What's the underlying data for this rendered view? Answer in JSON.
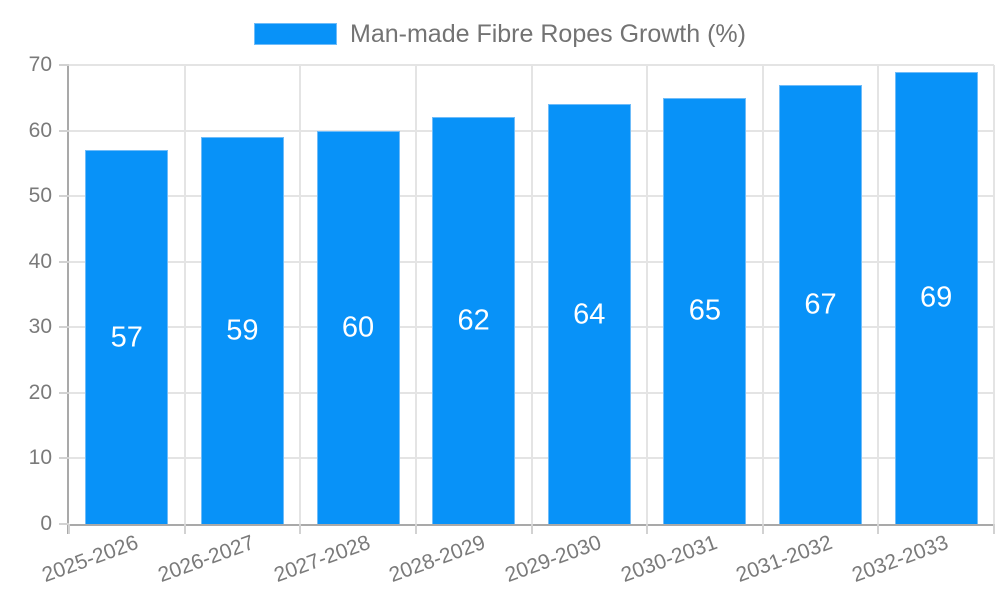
{
  "legend": {
    "label": "Man-made Fibre Ropes Growth (%)"
  },
  "chart_data": {
    "type": "bar",
    "title": "Man-made Fibre Ropes Growth (%)",
    "legend_position": "top",
    "categories": [
      "2025-2026",
      "2026-2027",
      "2027-2028",
      "2028-2029",
      "2029-2030",
      "2030-2031",
      "2031-2032",
      "2032-2033"
    ],
    "values": [
      57,
      59,
      60,
      62,
      64,
      65,
      67,
      69
    ],
    "series_name": "Man-made Fibre Ropes Growth (%)",
    "xlabel": "",
    "ylabel": "",
    "ylim": [
      0,
      70
    ],
    "yticks": [
      0,
      10,
      20,
      30,
      40,
      50,
      60,
      70
    ],
    "grid": true,
    "data_labels": "inside-center"
  },
  "style": {
    "bar_color": "#0892f8",
    "bar_border_color": "#6fbcf9",
    "grid_color": "#e4e4e4",
    "axis_line_color": "#a9a9a9",
    "tick_color": "#d2d2d2",
    "axis_label_color": "#7a7a7a",
    "legend_text_color": "#737373",
    "data_label_color": "#ffffff",
    "background": "#ffffff"
  }
}
